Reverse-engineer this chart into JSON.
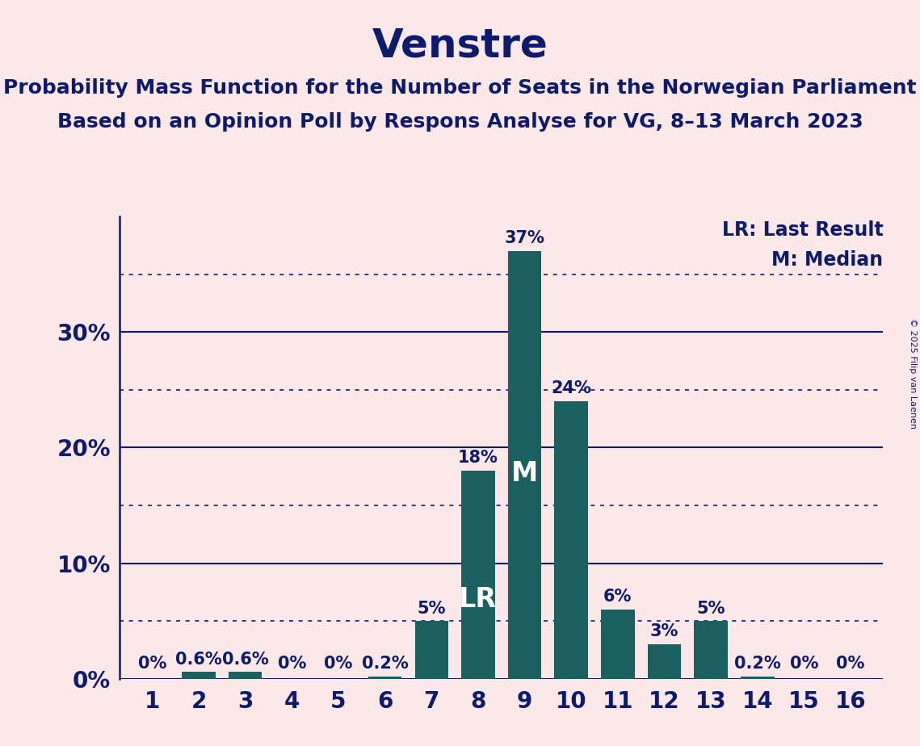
{
  "title": "Venstre",
  "subtitle1": "Probability Mass Function for the Number of Seats in the Norwegian Parliament",
  "subtitle2": "Based on an Opinion Poll by Respons Analyse for VG, 8–13 March 2023",
  "copyright": "© 2025 Filip van Laenen",
  "categories": [
    1,
    2,
    3,
    4,
    5,
    6,
    7,
    8,
    9,
    10,
    11,
    12,
    13,
    14,
    15,
    16
  ],
  "values": [
    0.0,
    0.6,
    0.6,
    0.0,
    0.0,
    0.2,
    5.0,
    18.0,
    37.0,
    24.0,
    6.0,
    3.0,
    5.0,
    0.2,
    0.0,
    0.0
  ],
  "labels": [
    "0%",
    "0.6%",
    "0.6%",
    "0%",
    "0%",
    "0.2%",
    "5%",
    "18%",
    "37%",
    "24%",
    "6%",
    "3%",
    "5%",
    "0.2%",
    "0%",
    "0%"
  ],
  "bar_color": "#1a6060",
  "background_color": "#fce8e8",
  "text_color": "#0d1a6e",
  "title_color": "#0d1a6e",
  "axis_color": "#0d1a6e",
  "legend_lr": "LR: Last Result",
  "legend_m": "M: Median",
  "lr_bar": 8,
  "median_bar": 9,
  "yticks_solid": [
    0,
    10,
    20,
    30
  ],
  "yticks_dotted": [
    5,
    15,
    25,
    35
  ],
  "ymax": 40,
  "title_fontsize": 36,
  "subtitle_fontsize": 18,
  "tick_fontsize": 20,
  "legend_fontsize": 17,
  "bar_label_fontsize": 15,
  "lr_m_fontsize": 24
}
